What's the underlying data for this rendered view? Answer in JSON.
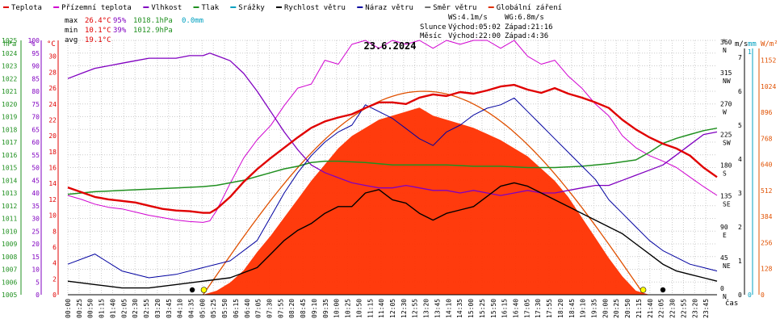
{
  "legend": [
    {
      "label": "Teplota",
      "color": "#e00000"
    },
    {
      "label": "Přízemní teplota",
      "color": "#d000d0"
    },
    {
      "label": "Vlhkost",
      "color": "#8000c0"
    },
    {
      "label": "Tlak",
      "color": "#209020"
    },
    {
      "label": "Srážky",
      "color": "#00a0c0"
    },
    {
      "label": "Rychlost větru",
      "color": "#000000"
    },
    {
      "label": "Náraz větru",
      "color": "#0000a0"
    },
    {
      "label": "Směr větru",
      "color": "#707070"
    },
    {
      "label": "Globální záření",
      "color": "#e03000"
    }
  ],
  "stats": {
    "max_label": "max",
    "max_temp": "26.4°C",
    "max_hum": "95%",
    "max_press": "1018.1hPa",
    "max_rain": "0.0mm",
    "min_label": "min",
    "min_temp": "10.1°C",
    "min_hum": "39%",
    "min_press": "1012.9hPa",
    "avg_label": "avg",
    "avg_temp": "19.1°C"
  },
  "info": {
    "ws": "WS:4.1m/s",
    "wg": "WG:6.8m/s",
    "sun_label": "Slunce",
    "sun_rise": "Východ:05:02",
    "sun_set": "Západ:21:16",
    "moon_label": "Měsíc",
    "moon_rise": "Východ:22:00",
    "moon_set": "Západ:4:36"
  },
  "date": "23.6.2024",
  "axis_units": {
    "hpa": "hPa",
    "pct": "%",
    "deg": "°C",
    "dir": "°",
    "ms": "m/s",
    "mm": "mm",
    "wm2": "W/m²",
    "time": "čas"
  },
  "colors": {
    "temp": "#e00000",
    "dew": "#d000d0",
    "hum": "#8000c0",
    "press": "#209020",
    "rain": "#00a0c0",
    "wind": "#000000",
    "gust": "#0000a0",
    "dir": "#707070",
    "solar": "#ff3000",
    "solar_line": "#e05000",
    "grid": "#cccccc",
    "axis": "#909090",
    "sun": "#ffff00",
    "moon": "#000000"
  },
  "chart_data": {
    "type": "line",
    "title": "23.6.2024",
    "x_ticks": [
      "00:00",
      "00:25",
      "00:50",
      "01:15",
      "01:40",
      "02:05",
      "02:30",
      "02:55",
      "03:20",
      "03:45",
      "04:10",
      "04:35",
      "05:00",
      "05:25",
      "05:50",
      "06:15",
      "06:40",
      "07:05",
      "07:30",
      "07:55",
      "08:20",
      "08:45",
      "09:10",
      "09:35",
      "10:00",
      "10:25",
      "10:50",
      "11:15",
      "11:40",
      "12:05",
      "12:30",
      "12:55",
      "13:20",
      "13:45",
      "14:10",
      "14:35",
      "15:00",
      "15:25",
      "15:50",
      "16:15",
      "16:40",
      "17:05",
      "17:30",
      "17:55",
      "18:20",
      "18:45",
      "19:10",
      "19:35",
      "20:00",
      "20:25",
      "20:50",
      "21:15",
      "21:40",
      "22:05",
      "22:30",
      "22:55",
      "23:20",
      "23:45"
    ],
    "axes": {
      "pressure_hpa": {
        "min": 1005,
        "max": 1025,
        "ticks": [
          1005,
          1006,
          1007,
          1008,
          1009,
          1010,
          1011,
          1012,
          1013,
          1014,
          1015,
          1016,
          1017,
          1018,
          1019,
          1020,
          1021,
          1022,
          1023,
          1024,
          1025
        ]
      },
      "humidity_pct": {
        "min": 0,
        "max": 100,
        "ticks": [
          0,
          5,
          10,
          15,
          20,
          25,
          30,
          35,
          40,
          45,
          50,
          55,
          60,
          65,
          70,
          75,
          80,
          85,
          90,
          95,
          100
        ]
      },
      "temperature_c": {
        "min": 0,
        "max": 32,
        "ticks": [
          0,
          2,
          4,
          6,
          8,
          10,
          12,
          14,
          16,
          18,
          20,
          22,
          24,
          26,
          28,
          30
        ]
      },
      "direction_deg": {
        "ticks": [
          0,
          45,
          90,
          135,
          180,
          225,
          270,
          315,
          360
        ],
        "labels": [
          "N",
          "NE",
          "E",
          "SE",
          "S",
          "SW",
          "W",
          "NW",
          "N"
        ]
      },
      "wind_ms": {
        "min": 0,
        "max": 7,
        "ticks": [
          0,
          1,
          2,
          3,
          4,
          5,
          6,
          7
        ]
      },
      "rain_mm": {
        "ticks": [
          0,
          1
        ]
      },
      "solar_wm2": {
        "min": 0,
        "max": 1152,
        "ticks": [
          0,
          128,
          256,
          384,
          512,
          640,
          768,
          896,
          1024,
          1152
        ]
      }
    },
    "series": [
      {
        "name": "Teplota",
        "unit": "°C",
        "x": [
          0,
          0.5,
          1,
          1.5,
          2,
          2.5,
          3,
          3.5,
          4,
          4.5,
          5,
          5.25,
          5.5,
          6,
          6.5,
          7,
          7.5,
          8,
          8.5,
          9,
          9.5,
          10,
          10.5,
          11,
          11.5,
          12,
          12.5,
          13,
          13.5,
          14,
          14.5,
          15,
          15.5,
          16,
          16.5,
          17,
          17.5,
          18,
          18.5,
          19,
          19.5,
          20,
          20.5,
          21,
          21.5,
          22,
          22.5,
          23,
          23.5,
          24
        ],
        "values": [
          13.5,
          12.9,
          12.3,
          12.0,
          11.8,
          11.6,
          11.2,
          10.8,
          10.6,
          10.5,
          10.3,
          10.3,
          10.8,
          12.3,
          14.2,
          15.8,
          17.2,
          18.5,
          19.8,
          21.0,
          21.8,
          22.3,
          22.7,
          23.5,
          24.2,
          24.2,
          24.0,
          24.8,
          25.2,
          25.0,
          25.5,
          25.3,
          25.7,
          26.2,
          26.4,
          25.8,
          25.4,
          26.0,
          25.3,
          24.8,
          24.2,
          23.5,
          22.0,
          20.8,
          19.8,
          19.0,
          18.4,
          17.5,
          16.0,
          14.8
        ]
      },
      {
        "name": "Přízemní teplota",
        "unit": "°C",
        "x": [
          0,
          0.5,
          1,
          1.5,
          2,
          2.5,
          3,
          3.5,
          4,
          4.5,
          5,
          5.25,
          5.5,
          6,
          6.5,
          7,
          7.5,
          8,
          8.5,
          9,
          9.5,
          10,
          10.5,
          11,
          11.5,
          12,
          12.5,
          13,
          13.5,
          14,
          14.5,
          15,
          15.5,
          16,
          16.5,
          17,
          17.5,
          18,
          18.5,
          19,
          19.5,
          20,
          20.5,
          21,
          21.5,
          22,
          22.5,
          23,
          23.5,
          24
        ],
        "values": [
          12.5,
          12.0,
          11.4,
          11.0,
          10.8,
          10.4,
          10.0,
          9.7,
          9.4,
          9.2,
          9.1,
          9.3,
          10.6,
          14.0,
          17.2,
          19.5,
          21.3,
          23.8,
          26.0,
          26.5,
          29.5,
          29.0,
          31.5,
          32.0,
          31.0,
          32.0,
          31.5,
          32.0,
          31.0,
          32.0,
          31.5,
          32.0,
          32.0,
          31.0,
          32.0,
          30.0,
          29.0,
          29.5,
          27.5,
          26.0,
          24.0,
          22.5,
          20.0,
          18.5,
          17.5,
          16.8,
          16.0,
          14.8,
          13.6,
          12.5
        ]
      },
      {
        "name": "Vlhkost",
        "unit": "%",
        "x": [
          0,
          0.5,
          1,
          1.5,
          2,
          2.5,
          3,
          3.5,
          4,
          4.5,
          5,
          5.25,
          5.5,
          6,
          6.5,
          7,
          7.5,
          8,
          8.5,
          9,
          9.5,
          10,
          10.5,
          11,
          11.5,
          12,
          12.5,
          13,
          13.5,
          14,
          14.5,
          15,
          15.5,
          16,
          16.5,
          17,
          17.5,
          18,
          18.5,
          19,
          19.5,
          20,
          20.5,
          21,
          21.5,
          22,
          22.5,
          23,
          23.5,
          24
        ],
        "values": [
          85,
          87,
          89,
          90,
          91,
          92,
          93,
          93,
          93,
          94,
          94,
          95,
          94,
          92,
          87,
          80,
          72,
          64,
          57,
          51,
          48,
          46,
          44,
          43,
          42,
          42,
          43,
          42,
          41,
          41,
          40,
          41,
          40,
          39,
          40,
          41,
          40,
          40,
          41,
          42,
          43,
          43,
          45,
          47,
          49,
          51,
          55,
          59,
          63,
          64
        ]
      },
      {
        "name": "Tlak",
        "unit": "hPa",
        "x": [
          0,
          1,
          2,
          3,
          4,
          5,
          5.5,
          6,
          6.5,
          7,
          7.5,
          8,
          8.5,
          9,
          9.5,
          10,
          11,
          12,
          13,
          14,
          15,
          16,
          17,
          18,
          19,
          20,
          21,
          21.5,
          22,
          22.5,
          23,
          23.5,
          24
        ],
        "values": [
          1012.9,
          1013.1,
          1013.2,
          1013.3,
          1013.4,
          1013.5,
          1013.6,
          1013.8,
          1014.0,
          1014.3,
          1014.6,
          1014.9,
          1015.1,
          1015.4,
          1015.5,
          1015.5,
          1015.4,
          1015.2,
          1015.2,
          1015.2,
          1015.1,
          1015.1,
          1015.0,
          1015.0,
          1015.1,
          1015.3,
          1015.6,
          1016.2,
          1016.9,
          1017.3,
          1017.6,
          1017.9,
          1018.1
        ]
      },
      {
        "name": "Rychlost větru",
        "unit": "m/s",
        "x": [
          0,
          1,
          2,
          3,
          4,
          5,
          6,
          7,
          7.5,
          8,
          8.5,
          9,
          9.5,
          10,
          10.5,
          11,
          11.5,
          12,
          12.5,
          13,
          13.5,
          14,
          14.5,
          15,
          15.5,
          16,
          16.5,
          17,
          17.5,
          18,
          18.5,
          19,
          19.5,
          20,
          20.5,
          21,
          21.5,
          22,
          22.5,
          23,
          23.5,
          24
        ],
        "values": [
          0.4,
          0.3,
          0.2,
          0.2,
          0.3,
          0.4,
          0.5,
          0.8,
          1.2,
          1.6,
          1.9,
          2.1,
          2.4,
          2.6,
          2.6,
          3.0,
          3.1,
          2.8,
          2.7,
          2.4,
          2.2,
          2.4,
          2.5,
          2.6,
          2.9,
          3.2,
          3.3,
          3.2,
          3.0,
          2.8,
          2.6,
          2.4,
          2.2,
          2.0,
          1.8,
          1.5,
          1.2,
          0.9,
          0.7,
          0.6,
          0.5,
          0.4
        ]
      },
      {
        "name": "Náraz větru",
        "unit": "m/s",
        "x": [
          0,
          1,
          2,
          3,
          4,
          5,
          6,
          7,
          7.5,
          8,
          8.5,
          9,
          9.5,
          10,
          10.5,
          11,
          11.5,
          12,
          12.5,
          13,
          13.5,
          14,
          14.5,
          15,
          15.5,
          16,
          16.5,
          17,
          17.5,
          18,
          18.5,
          19,
          19.5,
          20,
          20.5,
          21,
          21.5,
          22,
          22.5,
          23,
          23.5,
          24
        ],
        "values": [
          0.9,
          1.2,
          0.7,
          0.5,
          0.6,
          0.8,
          1.0,
          1.6,
          2.3,
          3.0,
          3.6,
          4.1,
          4.5,
          4.8,
          5.0,
          5.6,
          5.4,
          5.2,
          4.9,
          4.6,
          4.4,
          4.8,
          5.0,
          5.3,
          5.5,
          5.6,
          5.8,
          5.4,
          5.0,
          4.6,
          4.2,
          3.8,
          3.4,
          2.8,
          2.4,
          2.0,
          1.6,
          1.3,
          1.1,
          0.9,
          0.8,
          0.7
        ]
      },
      {
        "name": "Globální záření",
        "unit": "W/m²",
        "x": [
          0,
          5,
          5.5,
          6,
          6.5,
          7,
          7.5,
          8,
          8.5,
          9,
          9.5,
          10,
          10.5,
          11,
          11.5,
          12,
          12.5,
          13,
          13.5,
          14,
          14.5,
          15,
          15.5,
          16,
          16.5,
          17,
          17.5,
          18,
          18.5,
          19,
          19.5,
          20,
          20.5,
          21,
          21.5,
          24
        ],
        "values": [
          0,
          0,
          20,
          60,
          120,
          210,
          290,
          380,
          470,
          560,
          640,
          720,
          780,
          820,
          860,
          880,
          900,
          920,
          880,
          860,
          840,
          820,
          790,
          760,
          720,
          680,
          620,
          560,
          480,
          380,
          280,
          180,
          90,
          20,
          0,
          0
        ]
      }
    ],
    "grid": true,
    "legend_position": "top"
  }
}
